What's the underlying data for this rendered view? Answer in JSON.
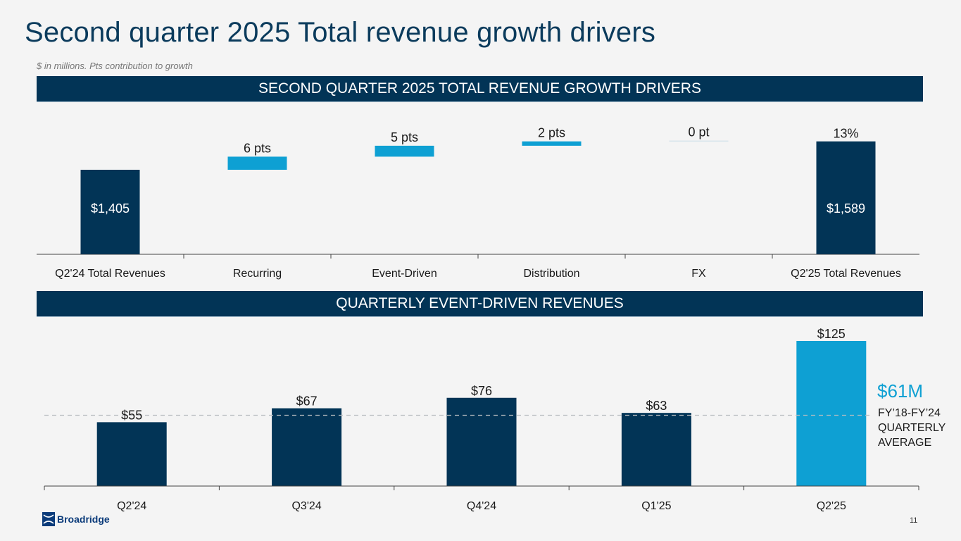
{
  "page": {
    "title": "Second quarter 2025 Total revenue growth drivers",
    "subtitle": "$ in millions. Pts contribution to growth",
    "section1_header": "SECOND QUARTER 2025 TOTAL REVENUE GROWTH DRIVERS",
    "section2_header": "QUARTERLY EVENT-DRIVEN REVENUES",
    "average_callout": {
      "value": "$61M",
      "line1": "FY’18-FY’24",
      "line2": "QUARTERLY",
      "line3": "AVERAGE"
    },
    "logo_text": "Broadridge",
    "page_number": "11"
  },
  "colors": {
    "navy": "#023456",
    "accent": "#0ea0d3",
    "fx_line": "#c9dde8",
    "avg_line": "#b8bcc0"
  },
  "chart_data": [
    {
      "type": "bar",
      "subtype": "waterfall",
      "title": "SECOND QUARTER 2025 TOTAL REVENUE GROWTH DRIVERS",
      "categories": [
        "Q2'24 Total Revenues",
        "Recurring",
        "Event-Driven",
        "Distribution",
        "FX",
        "Q2'25 Total Revenues"
      ],
      "kinds": [
        "total",
        "delta",
        "delta",
        "delta",
        "delta",
        "total"
      ],
      "growth_pts": [
        null,
        6,
        5,
        2,
        0,
        13
      ],
      "labels": [
        "$1,405",
        "6 pts",
        "5 pts",
        "2 pts",
        "0 pt",
        "13%"
      ],
      "inbar_labels": [
        "$1,405",
        null,
        null,
        null,
        null,
        "$1,589"
      ],
      "totals": {
        "start": 1405,
        "end": 1589
      },
      "units": "$ in millions; pts contribution to growth",
      "xlabel": "",
      "ylabel": ""
    },
    {
      "type": "bar",
      "title": "QUARTERLY EVENT-DRIVEN REVENUES",
      "categories": [
        "Q2'24",
        "Q3'24",
        "Q4'24",
        "Q1'25",
        "Q2'25"
      ],
      "values": [
        55,
        67,
        76,
        63,
        125
      ],
      "labels": [
        "$55",
        "$67",
        "$76",
        "$63",
        "$125"
      ],
      "highlight_index": 4,
      "reference_line": {
        "value": 61,
        "label": "$61M FY’18-FY’24 QUARTERLY AVERAGE",
        "style": "dashed"
      },
      "units": "$ in millions",
      "xlabel": "",
      "ylabel": "",
      "ylim": [
        0,
        125
      ]
    }
  ]
}
